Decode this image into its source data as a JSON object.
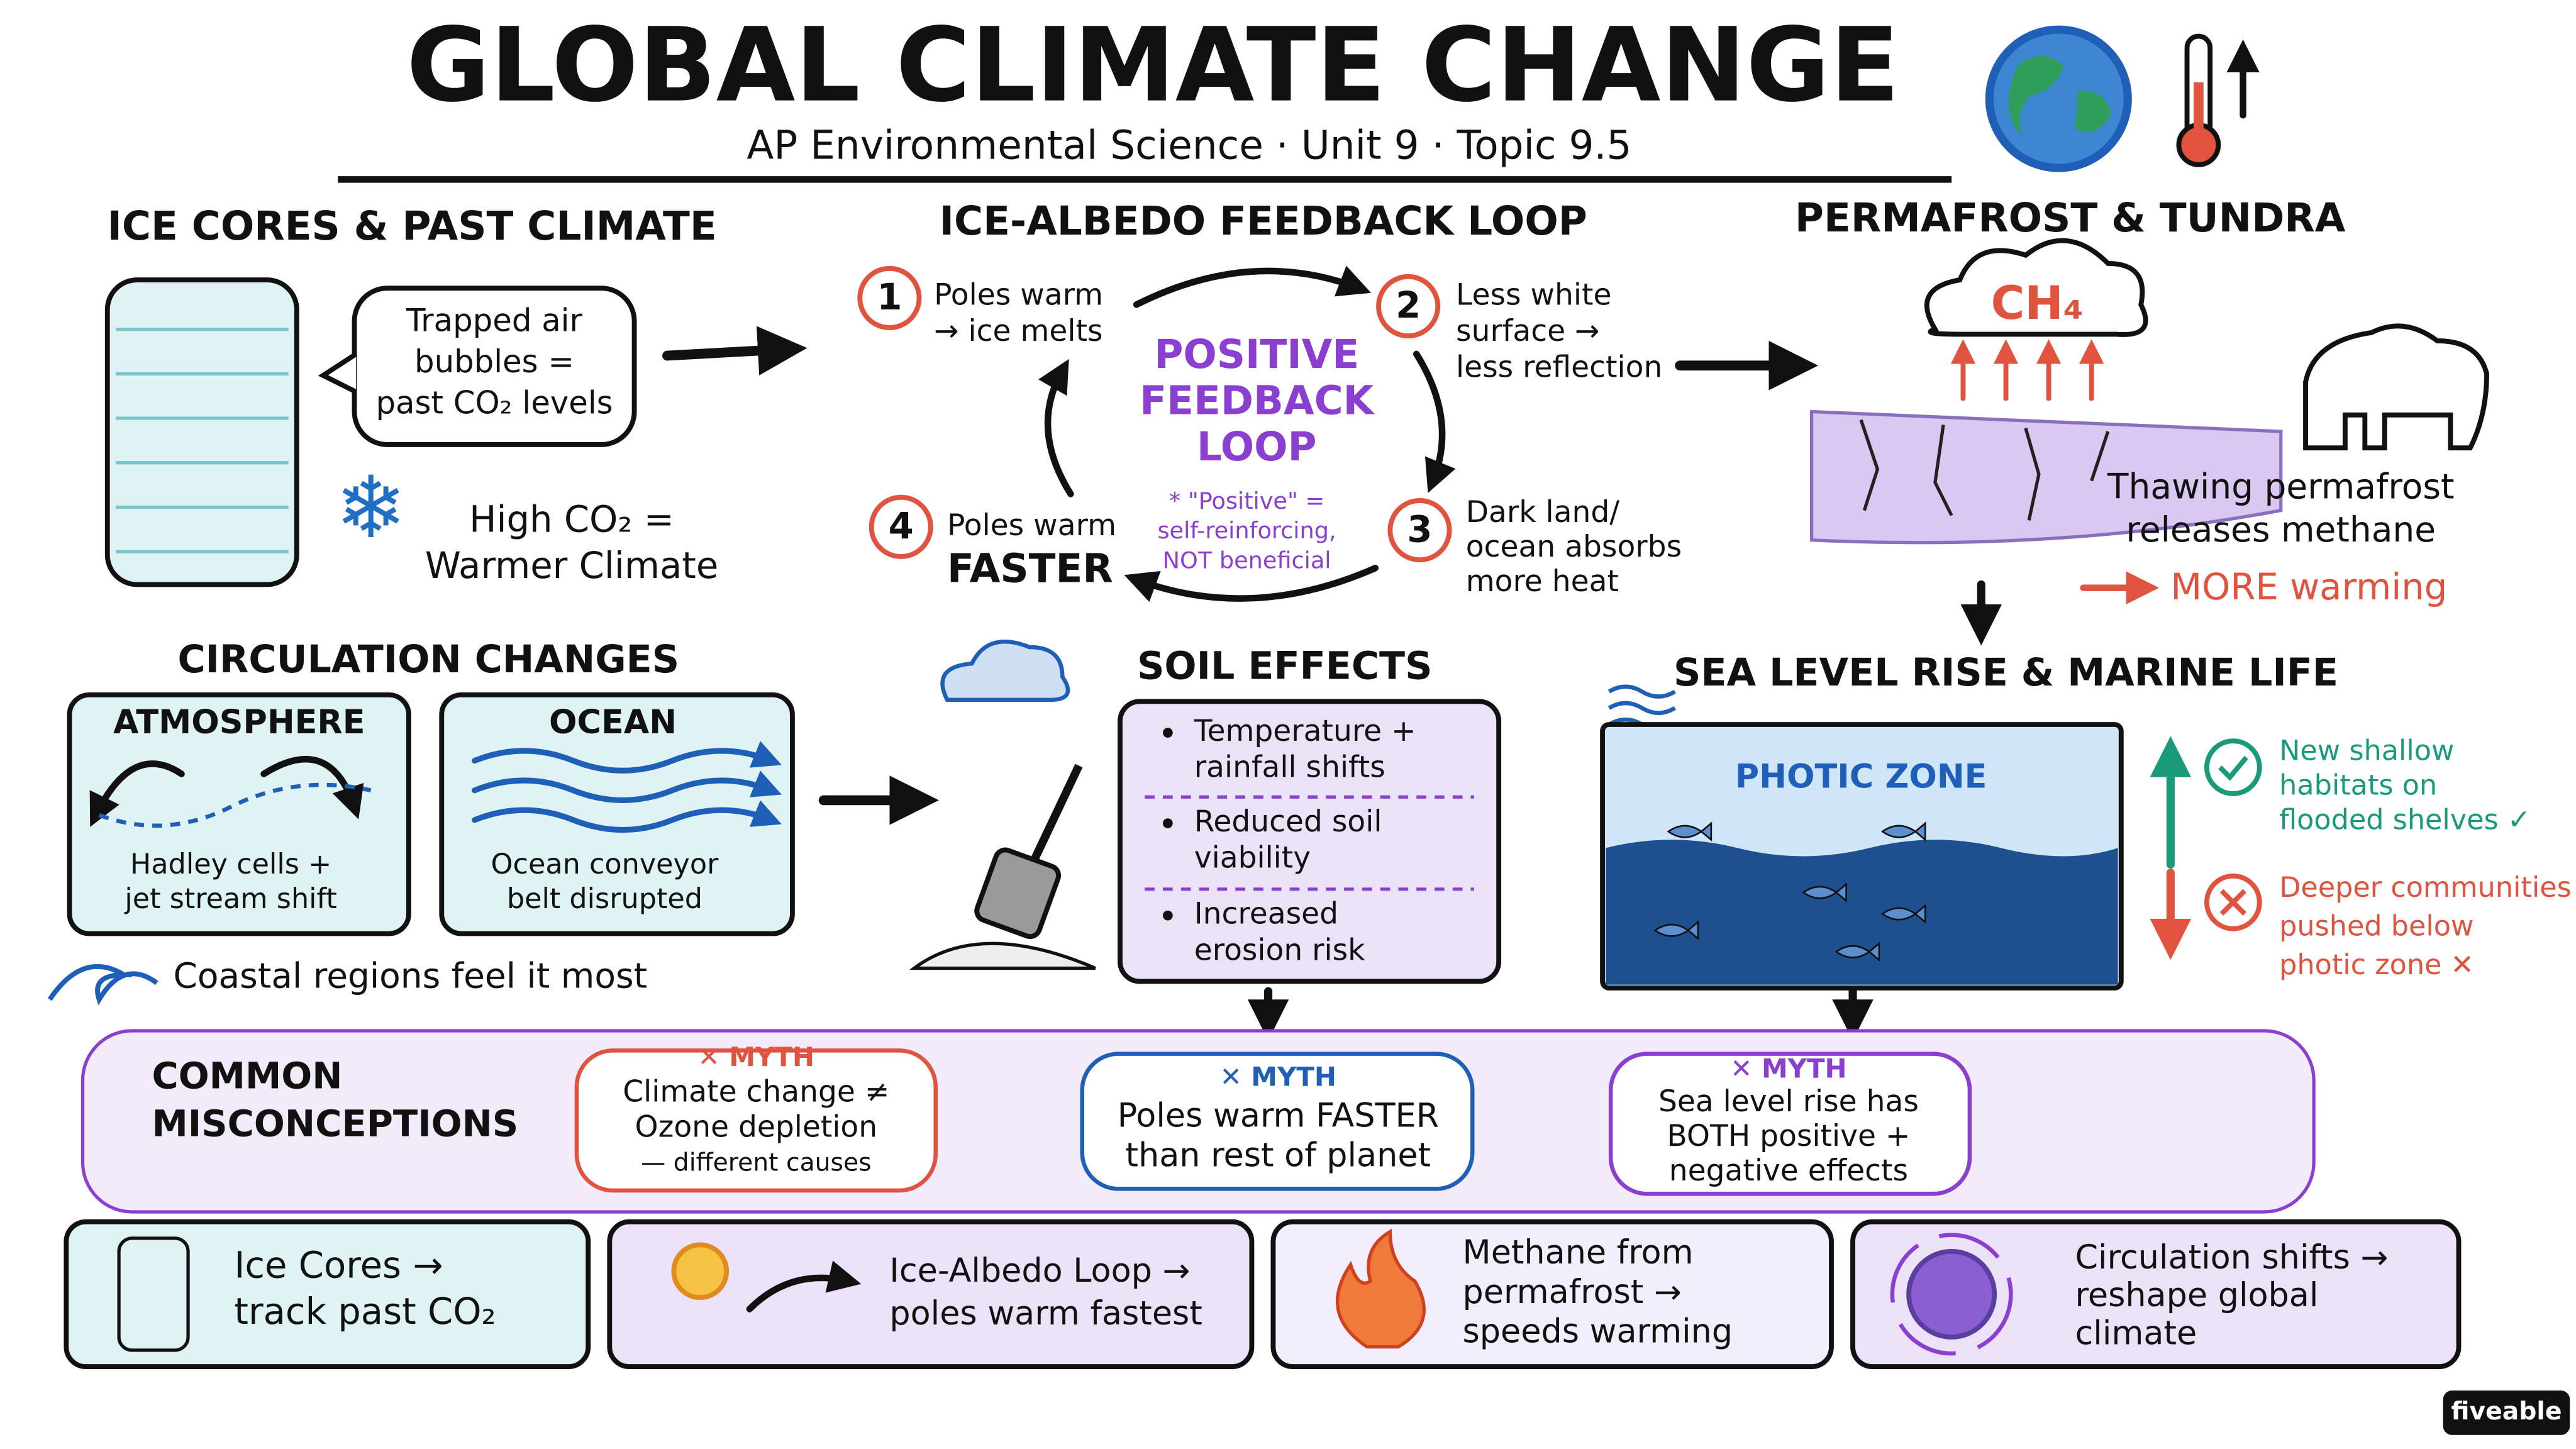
{
  "header": {
    "title": "GLOBAL CLIMATE CHANGE",
    "subtitle": "AP Environmental Science · Unit 9 · Topic 9.5"
  },
  "ice_cores": {
    "title": "ICE CORES & PAST CLIMATE",
    "bubble": [
      "Trapped air",
      "bubbles =",
      "past CO₂ levels"
    ],
    "note": [
      "High CO₂ =",
      "Warmer Climate"
    ]
  },
  "albedo": {
    "title": "ICE-ALBEDO FEEDBACK LOOP",
    "center": [
      "POSITIVE",
      "FEEDBACK",
      "LOOP"
    ],
    "footnote": [
      "* \"Positive\" =",
      "self-reinforcing,",
      "NOT beneficial"
    ],
    "steps": [
      {
        "number": "1",
        "lines": [
          "Poles warm",
          "→ ice melts"
        ]
      },
      {
        "number": "2",
        "lines": [
          "Less white",
          "surface →",
          "less reflection"
        ]
      },
      {
        "number": "3",
        "lines": [
          "Dark land/",
          "ocean absorbs",
          "more heat"
        ]
      },
      {
        "number": "4",
        "lines": [
          "Poles warm",
          "FASTER"
        ]
      }
    ]
  },
  "permafrost": {
    "title": "PERMAFROST & TUNDRA",
    "gas": "CH₄",
    "caption": [
      "Thawing permafrost",
      "releases methane"
    ],
    "result": "MORE warming"
  },
  "circulation": {
    "title": "CIRCULATION CHANGES",
    "panels": [
      {
        "title": "ATMOSPHERE",
        "lines": [
          "Hadley cells +",
          "jet stream shift"
        ]
      },
      {
        "title": "OCEAN",
        "lines": [
          "Ocean conveyor",
          "belt disrupted"
        ]
      }
    ],
    "note": "Coastal regions feel it most"
  },
  "soil": {
    "title": "SOIL EFFECTS",
    "items": [
      [
        "Temperature +",
        "rainfall shifts"
      ],
      [
        "Reduced soil",
        "viability"
      ],
      [
        "Increased",
        "erosion risk"
      ]
    ]
  },
  "sea_level": {
    "title": "SEA LEVEL RISE & MARINE LIFE",
    "zone": "PHOTIC ZONE",
    "positive": [
      "New shallow",
      "habitats on",
      "flooded shelves ✓"
    ],
    "negative": [
      "Deeper communities",
      "pushed below",
      "photic zone ✕"
    ]
  },
  "misconceptions": {
    "title": [
      "COMMON",
      "MISCONCEPTIONS"
    ],
    "myths": [
      {
        "label": "✕ MYTH",
        "lines": [
          "Climate change ≠",
          "Ozone depletion",
          "— different causes"
        ]
      },
      {
        "label": "✕ MYTH",
        "lines": [
          "Poles warm FASTER",
          "than rest of planet"
        ]
      },
      {
        "label": "✕ MYTH",
        "lines": [
          "Sea level rise has",
          "BOTH positive +",
          "negative effects"
        ]
      }
    ]
  },
  "summary": [
    {
      "lines": [
        "Ice Cores →",
        "track past CO₂"
      ]
    },
    {
      "lines": [
        "Ice-Albedo Loop →",
        "poles warm fastest"
      ]
    },
    {
      "lines": [
        "Methane from",
        "permafrost →",
        "speeds warming"
      ]
    },
    {
      "lines": [
        "Circulation shifts →",
        "reshape global",
        "climate"
      ]
    }
  ],
  "brand": "fiveable"
}
